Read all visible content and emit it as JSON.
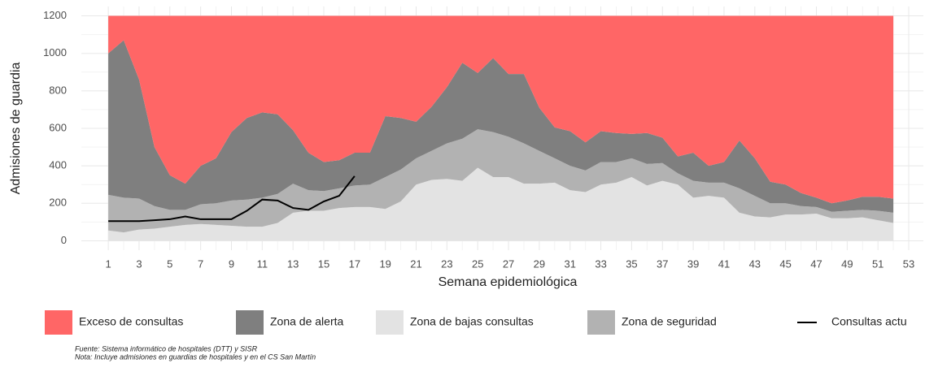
{
  "chart_data": {
    "type": "area",
    "x_label": "Semana epidemiológica",
    "y_label": "Admisiones de guardia",
    "x": [
      1,
      2,
      3,
      4,
      5,
      6,
      7,
      8,
      9,
      10,
      11,
      12,
      13,
      14,
      15,
      16,
      17,
      18,
      19,
      20,
      21,
      22,
      23,
      24,
      25,
      26,
      27,
      28,
      29,
      30,
      31,
      32,
      33,
      34,
      35,
      36,
      37,
      38,
      39,
      40,
      41,
      42,
      43,
      44,
      45,
      46,
      47,
      48,
      49,
      50,
      51,
      52
    ],
    "series": [
      {
        "name": "Zona de bajas consultas",
        "color": "#e3e3e3",
        "stacked": true,
        "values": [
          55,
          45,
          60,
          65,
          75,
          85,
          90,
          85,
          80,
          75,
          75,
          95,
          150,
          160,
          160,
          175,
          180,
          180,
          170,
          210,
          300,
          325,
          330,
          320,
          390,
          340,
          340,
          305,
          305,
          310,
          270,
          260,
          300,
          310,
          340,
          295,
          320,
          300,
          230,
          240,
          230,
          150,
          130,
          125,
          140,
          140,
          145,
          120,
          120,
          125,
          110,
          95
        ]
      },
      {
        "name": "Zona de seguridad",
        "color": "#b2b2b2",
        "stacked": true,
        "values": [
          190,
          185,
          165,
          120,
          90,
          80,
          105,
          115,
          135,
          145,
          155,
          155,
          155,
          110,
          105,
          105,
          115,
          120,
          170,
          170,
          140,
          155,
          190,
          225,
          205,
          240,
          215,
          215,
          175,
          130,
          130,
          115,
          120,
          110,
          100,
          115,
          95,
          60,
          90,
          70,
          80,
          130,
          110,
          75,
          60,
          45,
          35,
          35,
          40,
          40,
          50,
          55
        ]
      },
      {
        "name": "Zona de alerta",
        "color": "#7f7f7f",
        "stacked": true,
        "values": [
          755,
          840,
          635,
          315,
          185,
          140,
          205,
          240,
          365,
          435,
          455,
          425,
          285,
          200,
          155,
          150,
          175,
          170,
          325,
          275,
          195,
          235,
          300,
          405,
          300,
          395,
          335,
          370,
          230,
          165,
          185,
          150,
          165,
          155,
          130,
          165,
          135,
          90,
          150,
          90,
          110,
          255,
          200,
          115,
          100,
          70,
          50,
          45,
          55,
          70,
          75,
          75
        ]
      },
      {
        "name": "Exceso de consultas",
        "color": "#ff6666",
        "stacked": true,
        "values": [
          200,
          130,
          340,
          700,
          850,
          895,
          800,
          760,
          620,
          545,
          515,
          525,
          610,
          730,
          780,
          770,
          730,
          730,
          535,
          545,
          565,
          485,
          380,
          250,
          305,
          225,
          310,
          310,
          490,
          595,
          615,
          675,
          615,
          625,
          630,
          625,
          650,
          750,
          730,
          800,
          780,
          665,
          760,
          885,
          900,
          945,
          970,
          1000,
          985,
          965,
          965,
          975
        ]
      },
      {
        "name": "Consultas actu",
        "color": "#000000",
        "stacked": false,
        "values": [
          105,
          105,
          105,
          110,
          115,
          130,
          115,
          115,
          115,
          160,
          220,
          215,
          175,
          165,
          210,
          240,
          345,
          null,
          null,
          null,
          null,
          null,
          null,
          null,
          null,
          null,
          null,
          null,
          null,
          null,
          null,
          null,
          null,
          null,
          null,
          null,
          null,
          null,
          null,
          null,
          null,
          null,
          null,
          null,
          null,
          null,
          null,
          null,
          null,
          null,
          null,
          null
        ]
      }
    ],
    "xlim": [
      -0.75,
      53.95
    ],
    "ylim": [
      -50,
      1250
    ],
    "xticks": [
      1,
      3,
      5,
      7,
      9,
      11,
      13,
      15,
      17,
      19,
      21,
      23,
      25,
      27,
      29,
      31,
      33,
      35,
      37,
      39,
      41,
      43,
      45,
      47,
      49,
      51,
      53
    ],
    "yticks": [
      0,
      200,
      400,
      600,
      800,
      1000,
      1200
    ],
    "grid": true,
    "legend": "bottom",
    "notes": [
      "Fuente: Sistema informático de hospitales (DTT) y SISR",
      "Nota: Incluye admisiones en guardias de hospitales y en el CS San Martín"
    ]
  }
}
